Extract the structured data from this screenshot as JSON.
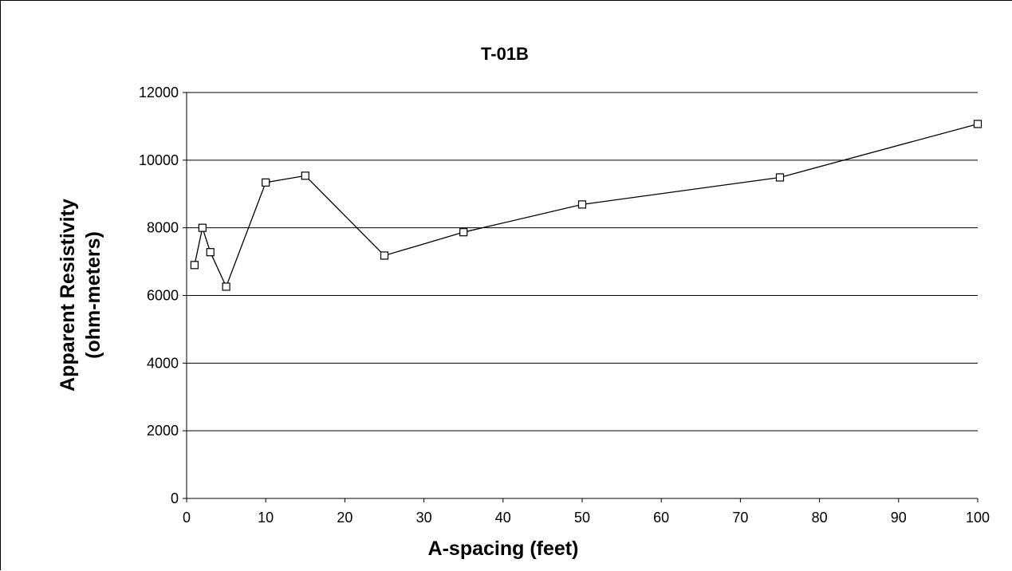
{
  "chart_data": {
    "type": "line",
    "title": "T-01B",
    "xlabel": "A-spacing (feet)",
    "ylabel_lines": [
      "Apparent Resistivity",
      "(ohm-meters)"
    ],
    "xlim": [
      0,
      100
    ],
    "ylim": [
      0,
      12000
    ],
    "x_ticks": [
      0,
      10,
      20,
      30,
      40,
      50,
      60,
      70,
      80,
      90,
      100
    ],
    "y_ticks": [
      0,
      2000,
      4000,
      6000,
      8000,
      10000,
      12000
    ],
    "grid": "horizontal",
    "legend": "none",
    "series": [
      {
        "x": [
          1,
          2,
          3,
          5,
          10,
          15,
          25,
          35,
          50,
          75,
          100
        ],
        "y": [
          6900,
          8000,
          7280,
          6260,
          9340,
          9540,
          7180,
          7870,
          8690,
          9490,
          11070
        ]
      }
    ],
    "marker": "hollow-square",
    "line_color": "#000000"
  }
}
